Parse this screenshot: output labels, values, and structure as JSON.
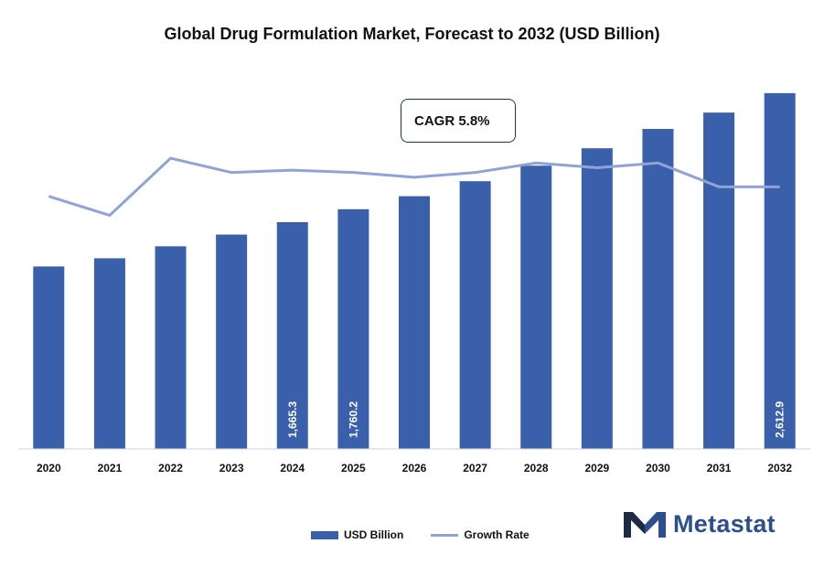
{
  "title": "Global Drug Formulation Market, Forecast to 2032 (USD Billion)",
  "cagr": "CAGR 5.8%",
  "brand": {
    "name": "Metastat"
  },
  "colors": {
    "bar": "#3a5fab",
    "line": "#8fa3d8",
    "brand": "#2d4f8e",
    "logo_dark": "#1f2a44"
  },
  "legend": {
    "bar_label": "USD Billion",
    "line_label": "Growth Rate"
  },
  "chart_data": {
    "type": "bar",
    "categories": [
      "2020",
      "2021",
      "2022",
      "2023",
      "2024",
      "2025",
      "2026",
      "2027",
      "2028",
      "2029",
      "2030",
      "2031",
      "2032"
    ],
    "series": [
      {
        "name": "USD Billion",
        "type": "bar",
        "values": [
          1340,
          1400,
          1488,
          1574,
          1665.3,
          1760.2,
          1856,
          1966,
          2080,
          2208,
          2350,
          2470,
          2612.9
        ],
        "data_labels": [
          "",
          "",
          "",
          "",
          "1,665.3",
          "1,760.2",
          "",
          "",
          "",
          "",
          "",
          "",
          "2,612.9"
        ]
      },
      {
        "name": "Growth Rate",
        "type": "line",
        "values": [
          5.3,
          4.9,
          6.1,
          5.8,
          5.85,
          5.8,
          5.7,
          5.8,
          6.0,
          5.9,
          6.0,
          5.5,
          5.5
        ]
      }
    ],
    "ylim": [
      0,
      2800
    ],
    "ylim_secondary": [
      0,
      8
    ],
    "legend_position": "bottom"
  }
}
